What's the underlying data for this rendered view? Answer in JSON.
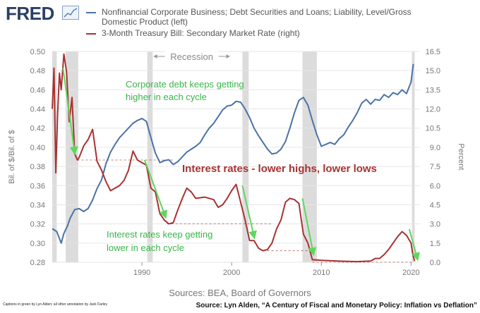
{
  "logo": {
    "text": "FRED",
    "icon": "chart-icon"
  },
  "legend": [
    {
      "label": "Nonfinancial Corporate Business; Debt Securities and Loans; Liability, Level/Gross",
      "label2": "Domestic Product (left)",
      "color": "#4a72a8"
    },
    {
      "label": "3-Month Treasury Bill: Secondary Market Rate (right)",
      "color": "#a83232"
    }
  ],
  "chart_data": {
    "type": "line",
    "ylabel": "Bil. of $/Bil. of $",
    "y2label": "Percent",
    "xlim": [
      1980,
      2021
    ],
    "ylim": [
      0.28,
      0.5
    ],
    "y2lim": [
      0.0,
      16.5
    ],
    "xticks": [
      1990,
      2000,
      2010,
      2020
    ],
    "yticks": [
      0.28,
      0.3,
      0.32,
      0.34,
      0.36,
      0.38,
      0.4,
      0.42,
      0.44,
      0.46,
      0.48,
      0.5
    ],
    "y2ticks": [
      "0.0",
      "1.5",
      "3.0",
      "4.5",
      "6.0",
      "7.5",
      "9.0",
      "10.5",
      "12.0",
      "13.5",
      "15.0",
      "16.5"
    ],
    "recessions": [
      [
        1980.0,
        1980.5
      ],
      [
        1981.5,
        1982.9
      ],
      [
        1990.6,
        1991.2
      ],
      [
        2001.2,
        2001.9
      ],
      [
        2007.9,
        2009.5
      ],
      [
        2020.1,
        2020.4
      ]
    ],
    "series": [
      {
        "name": "Nonfinancial Corporate Business; Debt Securities and Loans; Liability, Level/Gross Domestic Product (left)",
        "axis": "left",
        "color": "#4a72a8",
        "x": [
          1980.0,
          1980.5,
          1981.0,
          1981.3,
          1981.7,
          1982.0,
          1982.5,
          1983.0,
          1983.5,
          1984.0,
          1984.5,
          1985.0,
          1985.5,
          1986.0,
          1986.5,
          1987.0,
          1987.5,
          1988.0,
          1988.5,
          1989.0,
          1989.5,
          1990.0,
          1990.5,
          1991.0,
          1991.5,
          1992.0,
          1992.5,
          1993.0,
          1993.5,
          1994.0,
          1994.5,
          1995.0,
          1995.5,
          1996.0,
          1996.5,
          1997.0,
          1997.5,
          1998.0,
          1998.5,
          1999.0,
          1999.5,
          2000.0,
          2000.5,
          2001.0,
          2001.5,
          2002.0,
          2002.5,
          2003.0,
          2003.5,
          2004.0,
          2004.5,
          2005.0,
          2005.5,
          2006.0,
          2006.5,
          2007.0,
          2007.5,
          2008.0,
          2008.5,
          2009.0,
          2009.5,
          2010.0,
          2010.5,
          2011.0,
          2011.5,
          2012.0,
          2012.5,
          2013.0,
          2013.5,
          2014.0,
          2014.5,
          2015.0,
          2015.5,
          2016.0,
          2016.5,
          2017.0,
          2017.5,
          2018.0,
          2018.5,
          2019.0,
          2019.5,
          2020.0,
          2020.25
        ],
        "values": [
          0.315,
          0.312,
          0.3,
          0.31,
          0.318,
          0.326,
          0.335,
          0.336,
          0.333,
          0.336,
          0.345,
          0.357,
          0.366,
          0.383,
          0.395,
          0.403,
          0.41,
          0.415,
          0.42,
          0.425,
          0.428,
          0.43,
          0.427,
          0.41,
          0.394,
          0.384,
          0.386,
          0.387,
          0.382,
          0.385,
          0.39,
          0.395,
          0.398,
          0.401,
          0.405,
          0.413,
          0.42,
          0.425,
          0.432,
          0.439,
          0.443,
          0.444,
          0.448,
          0.447,
          0.44,
          0.431,
          0.42,
          0.412,
          0.405,
          0.398,
          0.393,
          0.394,
          0.398,
          0.406,
          0.42,
          0.436,
          0.449,
          0.452,
          0.444,
          0.428,
          0.413,
          0.401,
          0.403,
          0.405,
          0.403,
          0.409,
          0.413,
          0.421,
          0.428,
          0.436,
          0.446,
          0.45,
          0.445,
          0.45,
          0.449,
          0.455,
          0.452,
          0.457,
          0.455,
          0.46,
          0.456,
          0.468,
          0.487
        ]
      },
      {
        "name": "3-Month Treasury Bill: Secondary Market Rate (right)",
        "axis": "right",
        "color": "#a83232",
        "x": [
          1980.0,
          1980.2,
          1980.4,
          1980.6,
          1980.8,
          1981.0,
          1981.3,
          1981.6,
          1981.9,
          1982.2,
          1982.5,
          1982.8,
          1983.0,
          1983.5,
          1984.0,
          1984.5,
          1985.0,
          1985.5,
          1986.0,
          1986.5,
          1987.0,
          1987.5,
          1988.0,
          1988.5,
          1989.0,
          1989.5,
          1990.0,
          1990.5,
          1991.0,
          1991.5,
          1992.0,
          1992.5,
          1993.0,
          1993.5,
          1994.0,
          1994.5,
          1995.0,
          1995.5,
          1996.0,
          1997.0,
          1998.0,
          1998.5,
          1999.0,
          1999.5,
          2000.0,
          2000.5,
          2001.0,
          2001.5,
          2002.0,
          2002.5,
          2003.0,
          2003.5,
          2004.0,
          2004.5,
          2005.0,
          2005.5,
          2006.0,
          2006.5,
          2007.0,
          2007.5,
          2008.0,
          2008.5,
          2009.0,
          2010.0,
          2012.0,
          2014.0,
          2015.5,
          2016.0,
          2016.5,
          2017.0,
          2017.5,
          2018.0,
          2018.5,
          2019.0,
          2019.5,
          2020.0,
          2020.2,
          2020.4
        ],
        "values": [
          12.0,
          15.2,
          7.0,
          11.6,
          14.8,
          13.5,
          16.3,
          14.9,
          11.0,
          12.9,
          8.5,
          8.0,
          8.2,
          9.1,
          9.6,
          10.4,
          7.9,
          7.2,
          6.3,
          5.6,
          5.8,
          6.0,
          6.4,
          7.2,
          8.7,
          8.0,
          7.8,
          7.6,
          5.8,
          5.5,
          3.8,
          3.3,
          3.0,
          3.1,
          4.1,
          5.0,
          5.8,
          5.5,
          5.0,
          5.1,
          4.9,
          4.3,
          4.5,
          5.0,
          5.6,
          6.1,
          4.7,
          3.3,
          1.7,
          1.7,
          1.1,
          0.9,
          1.0,
          1.5,
          2.6,
          3.3,
          4.7,
          5.0,
          4.9,
          4.6,
          2.2,
          1.5,
          0.2,
          0.15,
          0.09,
          0.05,
          0.1,
          0.3,
          0.3,
          0.6,
          1.0,
          1.5,
          2.0,
          2.4,
          2.1,
          1.5,
          0.6,
          0.1
        ]
      }
    ],
    "annotations": [
      {
        "text": "Recession",
        "color": "#888888"
      },
      {
        "text": "Corporate debt keeps getting",
        "text2": "higher in each cycle",
        "color": "#39b54a"
      },
      {
        "text": "Interest rates - lower highs, lower lows",
        "color": "#a83232"
      },
      {
        "text": "Interest rates keep getting",
        "text2": "lower in each cycle",
        "color": "#39b54a"
      }
    ]
  },
  "footer": {
    "sources": "Sources: BEA, Board of Governors",
    "credit": "Captions in green by Lyn Alden; all other annotation by Jack Farley",
    "source": "Source: Lyn Alden, “A Century of Fiscal and Monetary Policy: Inflation vs Deflation”"
  }
}
